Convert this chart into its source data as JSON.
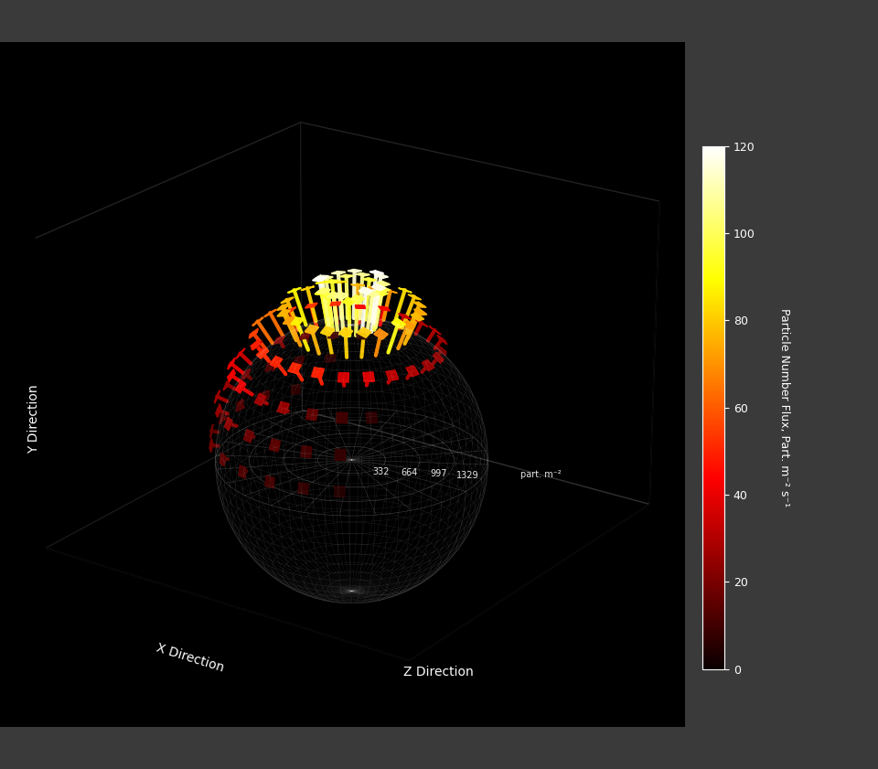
{
  "xlabel": "X Direction",
  "ylabel": "Y Direction",
  "zlabel": "Z Direction",
  "colorbar_label": "Particle Number Flux, Part. m⁻² s⁻¹",
  "colorbar_ticks": [
    0,
    20,
    40,
    60,
    80,
    100,
    120
  ],
  "colorbar_max": 120,
  "radial_labels": [
    "332",
    "664",
    "997",
    "1329"
  ],
  "radial_label_unit": "part. m⁻²",
  "radial_max": 1329,
  "bg_color": "#000000",
  "fig_bg_color": "#3a3a3a",
  "sphere_color": "#ffffff",
  "sphere_alpha": 0.15,
  "n_azimuth": 24,
  "n_elevation": 6,
  "elev_min_deg": 10,
  "elev_max_deg": 80,
  "cmap": "hot",
  "bar_alpha": 0.95,
  "view_elev": 22,
  "view_azim": -55
}
